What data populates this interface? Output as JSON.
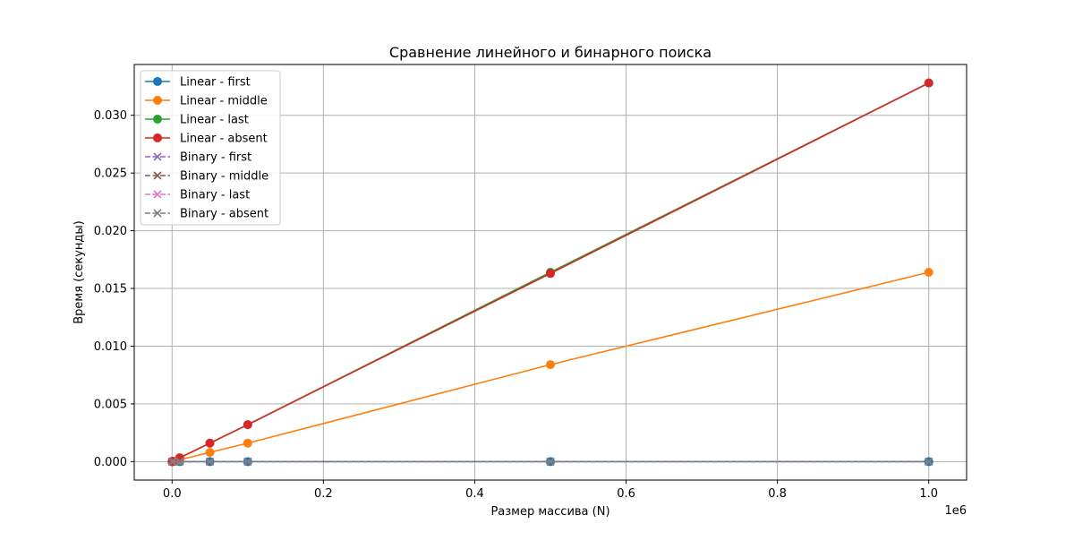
{
  "chart_data": {
    "type": "line",
    "title": "Сравнение линейного и бинарного поиска",
    "xlabel": "Размер массива (N)",
    "ylabel": "Время (секунды)",
    "x_offset_label": "1e6",
    "x_scale": 1000000,
    "xlim": [
      -50000,
      1050000
    ],
    "ylim": [
      -0.0016,
      0.0344
    ],
    "x_ticks": [
      0,
      200000,
      400000,
      600000,
      800000,
      1000000
    ],
    "x_tick_labels": [
      "0.0",
      "0.2",
      "0.4",
      "0.6",
      "0.8",
      "1.0"
    ],
    "y_ticks": [
      0,
      0.005,
      0.01,
      0.015,
      0.02,
      0.025,
      0.03
    ],
    "y_tick_labels": [
      "0.000",
      "0.005",
      "0.010",
      "0.015",
      "0.020",
      "0.025",
      "0.030"
    ],
    "grid": true,
    "legend_position": "top-left",
    "x": [
      100,
      1000,
      10000,
      50000,
      100000,
      500000,
      1000000
    ],
    "series": [
      {
        "name": "Linear - first",
        "color": "#1f77b4",
        "marker": "o",
        "linestyle": "solid",
        "values": [
          0,
          0,
          0,
          0,
          0,
          0,
          0
        ]
      },
      {
        "name": "Linear - middle",
        "color": "#ff7f0e",
        "marker": "o",
        "linestyle": "solid",
        "values": [
          1.6e-06,
          1.6e-05,
          0.00016,
          0.0008,
          0.0016,
          0.0084,
          0.0164
        ]
      },
      {
        "name": "Linear - last",
        "color": "#2ca02c",
        "marker": "o",
        "linestyle": "solid",
        "values": [
          3.3e-06,
          3.3e-05,
          0.00033,
          0.0016,
          0.0032,
          0.0164,
          0.0328
        ]
      },
      {
        "name": "Linear - absent",
        "color": "#d62728",
        "marker": "o",
        "linestyle": "solid",
        "values": [
          3.3e-06,
          3.3e-05,
          0.00033,
          0.0016,
          0.0032,
          0.0163,
          0.0328
        ]
      },
      {
        "name": "Binary - first",
        "color": "#9467bd",
        "marker": "x",
        "linestyle": "dashed",
        "values": [
          0,
          0,
          0,
          0,
          0,
          0,
          0
        ]
      },
      {
        "name": "Binary - middle",
        "color": "#8c564b",
        "marker": "x",
        "linestyle": "dashed",
        "values": [
          0,
          0,
          0,
          0,
          0,
          0,
          0
        ]
      },
      {
        "name": "Binary - last",
        "color": "#e377c2",
        "marker": "x",
        "linestyle": "dashed",
        "values": [
          0,
          0,
          0,
          0,
          0,
          0,
          0
        ]
      },
      {
        "name": "Binary - absent",
        "color": "#7f7f7f",
        "marker": "x",
        "linestyle": "dashed",
        "values": [
          0,
          0,
          0,
          0,
          0,
          0,
          0
        ]
      }
    ]
  }
}
